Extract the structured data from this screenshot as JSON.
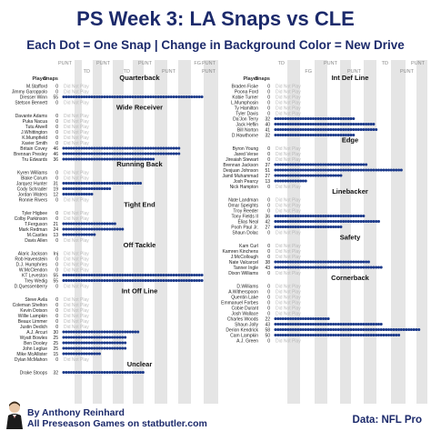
{
  "header": {
    "title": "PS Week 3: LA Snaps vs CLE",
    "subtitle": "Each Dot = One Snap  |  Change in Background Color = New Drive"
  },
  "footer": {
    "author": "By Anthony Reinhard",
    "site": "All Preseason Games on statbutler.com",
    "source": "Data: NFL Pro"
  },
  "labels": {
    "player_header": "Player",
    "snaps_header": "Snaps",
    "did_not_play": "Did Not Play"
  },
  "colors": {
    "dot": "#1c3a8a",
    "drive_a": "#ffffff",
    "drive_b": "#e5e5e5",
    "accent": "#1c2a6b"
  },
  "drive_markers": {
    "left": [
      "PUNT",
      "TD",
      "PUNT",
      "TD",
      "PUNT",
      "PUNT",
      "FG",
      "PUNT",
      "PUNT"
    ],
    "right": [
      "TD",
      "FG",
      "PUNT",
      "PUNT",
      "TD",
      "PUNT",
      "PUNT"
    ]
  },
  "chart_data": {
    "type": "scatter",
    "title": "PS Week 3: LA Snaps vs CLE",
    "left_panels": [
      {
        "group": "Quarterback",
        "players": [
          {
            "name": "M.Stafford",
            "snaps": "0"
          },
          {
            "name": "Jimmy Garoppolo",
            "snaps": "0"
          },
          {
            "name": "Dresser Winn",
            "snaps": "55"
          },
          {
            "name": "Stetson Bennett",
            "snaps": "0"
          }
        ]
      },
      {
        "group": "Wide Receiver",
        "players": [
          {
            "name": "Davante Adams",
            "snaps": "0"
          },
          {
            "name": "Puka Nacua",
            "snaps": "0"
          },
          {
            "name": "Tutu Atwell",
            "snaps": "0"
          },
          {
            "name": "J.Whittington",
            "snaps": "0"
          },
          {
            "name": "K.Mumpfield",
            "snaps": "0"
          },
          {
            "name": "Xavier Smith",
            "snaps": "0"
          },
          {
            "name": "Britain Covey",
            "snaps": "46"
          },
          {
            "name": "Brennan Presley",
            "snaps": "46"
          },
          {
            "name": "Tru Edwards",
            "snaps": "36"
          }
        ]
      },
      {
        "group": "Running Back",
        "players": [
          {
            "name": "Kyren Williams",
            "snaps": "0"
          },
          {
            "name": "Blake Corum",
            "snaps": "0"
          },
          {
            "name": "Jarquez Hunter",
            "snaps": "31"
          },
          {
            "name": "Cody Schrader",
            "snaps": "19"
          },
          {
            "name": "Jordan Waters",
            "snaps": "12"
          },
          {
            "name": "Ronnie Rivers",
            "snaps": "0"
          }
        ]
      },
      {
        "group": "Tight End",
        "players": [
          {
            "name": "Tyler Higbee",
            "snaps": "0"
          },
          {
            "name": "Colby Parkinson",
            "snaps": "0"
          },
          {
            "name": "T.Ferguson",
            "snaps": "21"
          },
          {
            "name": "Mark Redman",
            "snaps": "24"
          },
          {
            "name": "M.Castles",
            "snaps": "13"
          },
          {
            "name": "Davis Allen",
            "snaps": "0"
          }
        ]
      },
      {
        "group": "Off Tackle",
        "players": [
          {
            "name": "Alaric Jackson",
            "snaps": "Inj"
          },
          {
            "name": "Rob Havenstein",
            "snaps": "0"
          },
          {
            "name": "D.J. Humphries",
            "snaps": "0"
          },
          {
            "name": "W.McClendon",
            "snaps": "0"
          },
          {
            "name": "KT Leveston",
            "snaps": "55"
          },
          {
            "name": "Trey Wedig",
            "snaps": "55"
          },
          {
            "name": "D.Quessenberry",
            "snaps": "0"
          }
        ]
      },
      {
        "group": "Int Off Line",
        "players": [
          {
            "name": "Steve Avila",
            "snaps": "0"
          },
          {
            "name": "Coleman Shelton",
            "snaps": "0"
          },
          {
            "name": "Kevin Dotson",
            "snaps": "0"
          },
          {
            "name": "Willie Lampkin",
            "snaps": "0"
          },
          {
            "name": "Beaux Limmer",
            "snaps": "0"
          },
          {
            "name": "Justin Dedich",
            "snaps": "0"
          },
          {
            "name": "A.J. Arcuri",
            "snaps": "30"
          },
          {
            "name": "Wyatt Bowles",
            "snaps": "25"
          },
          {
            "name": "Ben Dooley",
            "snaps": "25"
          },
          {
            "name": "John Leglue",
            "snaps": "25"
          },
          {
            "name": "Mike McAllister",
            "snaps": "15"
          },
          {
            "name": "Dylan McMahon",
            "snaps": "0"
          }
        ]
      },
      {
        "group": "Unclear",
        "players": [
          {
            "name": "Drake Stoops",
            "snaps": "32"
          }
        ]
      }
    ],
    "right_panels": [
      {
        "group": "Int Def Line",
        "players": [
          {
            "name": "Braden Fiske",
            "snaps": "0"
          },
          {
            "name": "Poona Ford",
            "snaps": "0"
          },
          {
            "name": "Kobie Turner",
            "snaps": "0"
          },
          {
            "name": "L.Mumphosin",
            "snaps": "0"
          },
          {
            "name": "Ty Hamilton",
            "snaps": "0"
          },
          {
            "name": "Tyler Davis",
            "snaps": "0"
          },
          {
            "name": "Da'Jon Terry",
            "snaps": "32"
          },
          {
            "name": "Jack Heflin",
            "snaps": "40"
          },
          {
            "name": "Bill Norton",
            "snaps": "41"
          },
          {
            "name": "D.Hawthorne",
            "snaps": "32"
          }
        ]
      },
      {
        "group": "Edge",
        "players": [
          {
            "name": "Byron Young",
            "snaps": "0"
          },
          {
            "name": "Jared Verse",
            "snaps": "0"
          },
          {
            "name": "Jireaiah Stewart",
            "snaps": "0"
          },
          {
            "name": "Brennan Jackson",
            "snaps": "37"
          },
          {
            "name": "Desjuan Johnson",
            "snaps": "51"
          },
          {
            "name": "Jamil Muhammad",
            "snaps": "27"
          },
          {
            "name": "Josh Pearcy",
            "snaps": "13"
          },
          {
            "name": "Nick Hampton",
            "snaps": "0"
          }
        ]
      },
      {
        "group": "Linebacker",
        "players": [
          {
            "name": "Nate Landman",
            "snaps": "0"
          },
          {
            "name": "Omar Speights",
            "snaps": "0"
          },
          {
            "name": "Troy Reeder",
            "snaps": "0"
          },
          {
            "name": "Tony Fields II",
            "snaps": "36"
          },
          {
            "name": "Elias Neal",
            "snaps": "42"
          },
          {
            "name": "Pooh Paul Jr.",
            "snaps": "27"
          },
          {
            "name": "Shaun Dolac",
            "snaps": "0"
          }
        ]
      },
      {
        "group": "Safety",
        "players": [
          {
            "name": "Kam Curl",
            "snaps": "0"
          },
          {
            "name": "Kamren Kinchens",
            "snaps": "0"
          },
          {
            "name": "J.McCollough",
            "snaps": "0"
          },
          {
            "name": "Nate Valcarcel",
            "snaps": "38"
          },
          {
            "name": "Tanner Ingle",
            "snaps": "43"
          },
          {
            "name": "Dixon Williams",
            "snaps": "0"
          }
        ]
      },
      {
        "group": "Cornerback",
        "players": [
          {
            "name": "D.Williams",
            "snaps": "0"
          },
          {
            "name": "A.Witherspoon",
            "snaps": "0"
          },
          {
            "name": "Quentin Lake",
            "snaps": "0"
          },
          {
            "name": "Emmanuel Forbes",
            "snaps": "0"
          },
          {
            "name": "Cobie Durant",
            "snaps": "0"
          },
          {
            "name": "Josh Wallace",
            "snaps": "0"
          },
          {
            "name": "Charles Woods",
            "snaps": "22"
          },
          {
            "name": "Shaun Jolly",
            "snaps": "43"
          },
          {
            "name": "Derion Kendrick",
            "snaps": "58"
          },
          {
            "name": "Cam Lampkin",
            "snaps": "50"
          },
          {
            "name": "A.J. Green",
            "snaps": "0"
          }
        ]
      }
    ]
  }
}
